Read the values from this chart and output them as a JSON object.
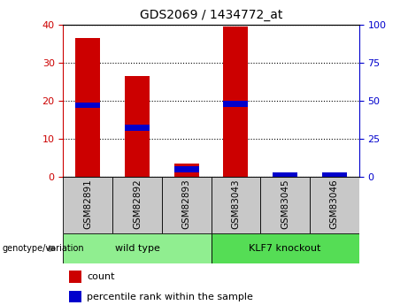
{
  "title": "GDS2069 / 1434772_at",
  "samples": [
    "GSM82891",
    "GSM82892",
    "GSM82893",
    "GSM83043",
    "GSM83045",
    "GSM83046"
  ],
  "count_values": [
    36.5,
    26.5,
    3.5,
    39.5,
    0.3,
    0.3
  ],
  "percentile_values": [
    47,
    32,
    5,
    48,
    1,
    1
  ],
  "bar_color": "#CC0000",
  "percentile_color": "#0000CC",
  "left_axis_color": "#CC0000",
  "right_axis_color": "#0000CC",
  "ylim_left": [
    0,
    40
  ],
  "ylim_right": [
    0,
    100
  ],
  "yticks_left": [
    0,
    10,
    20,
    30,
    40
  ],
  "yticks_right": [
    0,
    25,
    50,
    75,
    100
  ],
  "bar_width": 0.5,
  "legend_count_label": "count",
  "legend_percentile_label": "percentile rank within the sample",
  "group_label": "genotype/variation",
  "title_fontsize": 10,
  "tick_fontsize": 8,
  "label_fontsize": 7.5,
  "group_fontsize": 8,
  "legend_fontsize": 8,
  "sample_box_color": "#C8C8C8",
  "wild_type_color": "#90EE90",
  "knockout_color": "#55DD55"
}
